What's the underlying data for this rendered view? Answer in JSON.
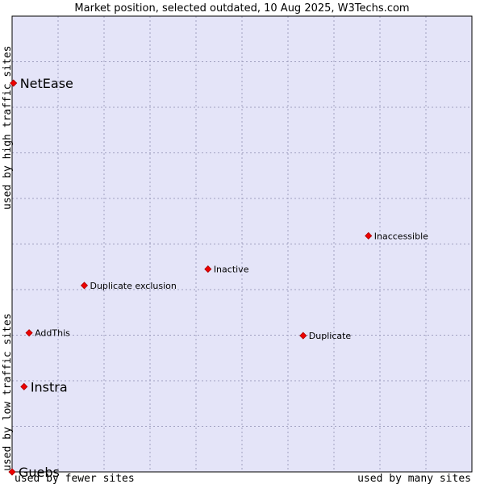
{
  "chart_data": {
    "type": "scatter",
    "title": "Market position, selected outdated, 10 Aug 2025, W3Techs.com",
    "xlabel_left": "used by fewer sites",
    "xlabel_right": "used by many sites",
    "ylabel_bottom": "used by low traffic sites",
    "ylabel_top": "used by high traffic sites",
    "xlim": [
      0,
      100
    ],
    "ylim": [
      0,
      100
    ],
    "grid": true,
    "colors": {
      "plot_bg": "#e4e4f8",
      "grid": "#a0a0c0",
      "border": "#000000",
      "point": "#ee0000"
    },
    "points": [
      {
        "name": "NetEase",
        "x": 0.3,
        "y": 85.3,
        "label_size": "large"
      },
      {
        "name": "Inaccessible",
        "x": 77.5,
        "y": 51.8,
        "label_size": "small"
      },
      {
        "name": "Inactive",
        "x": 42.6,
        "y": 44.5,
        "label_size": "small"
      },
      {
        "name": "Duplicate exclusion",
        "x": 15.7,
        "y": 40.9,
        "label_size": "small"
      },
      {
        "name": "AddThis",
        "x": 3.7,
        "y": 30.5,
        "label_size": "small"
      },
      {
        "name": "Duplicate",
        "x": 63.3,
        "y": 29.9,
        "label_size": "small"
      },
      {
        "name": "Instra",
        "x": 2.6,
        "y": 18.7,
        "label_size": "large"
      },
      {
        "name": "Guebs",
        "x": 0,
        "y": 0,
        "label_size": "large"
      }
    ]
  }
}
